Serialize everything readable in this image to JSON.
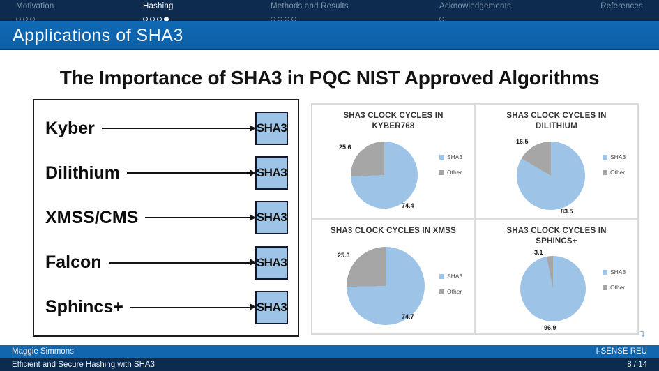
{
  "nav": {
    "sections": [
      {
        "label": "Motivation",
        "dots": 3,
        "active_dot": -1,
        "active": false
      },
      {
        "label": "Hashing",
        "dots": 4,
        "active_dot": 3,
        "active": true
      },
      {
        "label": "Methods and Results",
        "dots": 4,
        "active_dot": -1,
        "active": false
      },
      {
        "label": "Acknowledgements",
        "dots": 1,
        "active_dot": -1,
        "active": false
      },
      {
        "label": "References",
        "dots": 0,
        "active_dot": -1,
        "active": false
      }
    ]
  },
  "frame_title": "Applications of SHA3",
  "slide": {
    "heading": "The Importance of SHA3 in PQC NIST Approved Algorithms",
    "diagram": {
      "rows": [
        {
          "label": "Kyber",
          "target": "SHA3"
        },
        {
          "label": "Dilithium",
          "target": "SHA3"
        },
        {
          "label": "XMSS/CMS",
          "target": "SHA3"
        },
        {
          "label": "Falcon",
          "target": "SHA3"
        },
        {
          "label": "Sphincs+",
          "target": "SHA3"
        }
      ]
    }
  },
  "chart_data": [
    {
      "type": "pie",
      "title": "SHA3 CLOCK CYCLES IN KYBER768",
      "categories": [
        "SHA3",
        "Other"
      ],
      "values": [
        74.4,
        25.6
      ],
      "colors": [
        "#9DC3E6",
        "#A6A6A6"
      ],
      "legend_position": "right",
      "start_angle_deg": 0,
      "direction": "clockwise"
    },
    {
      "type": "pie",
      "title": "SHA3 CLOCK CYCLES IN DILITHIUM",
      "categories": [
        "SHA3",
        "Other"
      ],
      "values": [
        83.5,
        16.5
      ],
      "colors": [
        "#9DC3E6",
        "#A6A6A6"
      ],
      "legend_position": "right",
      "start_angle_deg": 0,
      "direction": "clockwise"
    },
    {
      "type": "pie",
      "title": "SHA3 CLOCK CYCLES IN XMSS",
      "categories": [
        "SHA3",
        "Other"
      ],
      "values": [
        74.7,
        25.3
      ],
      "colors": [
        "#9DC3E6",
        "#A6A6A6"
      ],
      "legend_position": "right",
      "start_angle_deg": 0,
      "direction": "clockwise"
    },
    {
      "type": "pie",
      "title": "SHA3 CLOCK CYCLES IN SPHINCS+",
      "categories": [
        "SHA3",
        "Other"
      ],
      "values": [
        96.9,
        3.1
      ],
      "colors": [
        "#9DC3E6",
        "#A6A6A6"
      ],
      "legend_position": "right",
      "start_angle_deg": 0,
      "direction": "clockwise"
    }
  ],
  "footer": {
    "author": "Maggie Simmons",
    "institute": "I-SENSE REU",
    "short_title": "Efficient and Secure Hashing with SHA3",
    "page": "8 / 14"
  },
  "icons": {
    "nav_arrow": "↴"
  },
  "colors": {
    "top_bar": "#0C2B4E",
    "title_bar": "#0E64AD",
    "footer_bar1": "#1166AE",
    "footer_bar2": "#0C2B4E",
    "pie_sha3": "#9DC3E6",
    "pie_other": "#A6A6A6",
    "sha3_box_fill": "#9DC3E6"
  }
}
